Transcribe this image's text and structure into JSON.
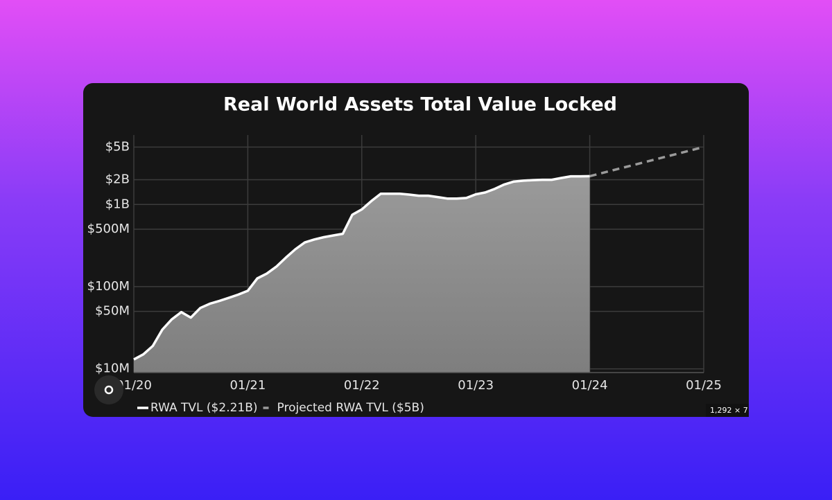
{
  "chart_data": {
    "type": "area",
    "title": "Real World Assets Total Value Locked",
    "ylog": true,
    "grid": true,
    "legend": "bottom-left",
    "ylim": [
      9000000,
      7000000000
    ],
    "yticks": [
      {
        "value": 10000000,
        "label": "$10M"
      },
      {
        "value": 50000000,
        "label": "$50M"
      },
      {
        "value": 100000000,
        "label": "$100M"
      },
      {
        "value": 500000000,
        "label": "$500M"
      },
      {
        "value": 1000000000,
        "label": "$1B"
      },
      {
        "value": 2000000000,
        "label": "$2B"
      },
      {
        "value": 5000000000,
        "label": "$5B"
      }
    ],
    "xlim": [
      "2020-01",
      "2025-01"
    ],
    "xticks": [
      {
        "value": "2020-01",
        "label": "01/20"
      },
      {
        "value": "2021-01",
        "label": "01/21"
      },
      {
        "value": "2022-01",
        "label": "01/22"
      },
      {
        "value": "2023-01",
        "label": "01/23"
      },
      {
        "value": "2024-01",
        "label": "01/24"
      },
      {
        "value": "2025-01",
        "label": "01/25"
      }
    ],
    "series": [
      {
        "name": "RWA TVL ($2.21B)",
        "color": "#ffffff",
        "fill": "#8a8a8a",
        "dashed": false,
        "x": [
          "2020-01",
          "2020-02",
          "2020-03",
          "2020-04",
          "2020-05",
          "2020-06",
          "2020-07",
          "2020-08",
          "2020-09",
          "2020-10",
          "2020-11",
          "2020-12",
          "2021-01",
          "2021-02",
          "2021-03",
          "2021-04",
          "2021-05",
          "2021-06",
          "2021-07",
          "2021-08",
          "2021-09",
          "2021-10",
          "2021-11",
          "2021-12",
          "2022-01",
          "2022-02",
          "2022-03",
          "2022-04",
          "2022-05",
          "2022-06",
          "2022-07",
          "2022-08",
          "2022-09",
          "2022-10",
          "2022-11",
          "2022-12",
          "2023-01",
          "2023-02",
          "2023-03",
          "2023-04",
          "2023-05",
          "2023-06",
          "2023-07",
          "2023-08",
          "2023-09",
          "2023-10",
          "2023-11",
          "2023-12",
          "2024-01"
        ],
        "values": [
          13000000,
          15000000,
          19000000,
          30000000,
          40000000,
          49000000,
          42000000,
          55000000,
          62000000,
          67000000,
          73000000,
          80000000,
          89000000,
          126000000,
          144000000,
          175000000,
          225000000,
          285000000,
          345000000,
          375000000,
          400000000,
          420000000,
          440000000,
          750000000,
          870000000,
          1100000000,
          1350000000,
          1350000000,
          1350000000,
          1320000000,
          1280000000,
          1280000000,
          1230000000,
          1180000000,
          1180000000,
          1200000000,
          1330000000,
          1400000000,
          1550000000,
          1750000000,
          1900000000,
          1950000000,
          1980000000,
          2000000000,
          2000000000,
          2100000000,
          2200000000,
          2200000000,
          2210000000
        ]
      },
      {
        "name": "Projected RWA TVL ($5B)",
        "color": "#9a9a9a",
        "dashed": true,
        "x": [
          "2024-01",
          "2025-01"
        ],
        "values": [
          2210000000,
          5000000000
        ]
      }
    ]
  },
  "badge": "1,292 × 7"
}
